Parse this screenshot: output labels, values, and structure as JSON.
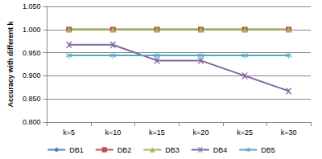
{
  "chart_data": {
    "type": "line",
    "y_label": "Accuracy with different k",
    "categories": [
      "k=5",
      "k=10",
      "k=15",
      "k=20",
      "k=25",
      "k=30"
    ],
    "series": [
      {
        "name": "DB1",
        "color": "#4f81bd",
        "marker": "diamond",
        "line_style": "solid",
        "values": [
          1.0,
          1.0,
          1.0,
          1.0,
          1.0,
          1.0
        ]
      },
      {
        "name": "DB2",
        "color": "#c0504d",
        "marker": "square",
        "line_style": "solid",
        "values": [
          1.0,
          1.0,
          1.0,
          1.0,
          1.0,
          1.0
        ]
      },
      {
        "name": "DB3",
        "color": "#9bbb59",
        "marker": "triangle",
        "line_style": "solid",
        "values": [
          1.0,
          1.0,
          1.0,
          1.0,
          1.0,
          1.0
        ]
      },
      {
        "name": "DB4",
        "color": "#8064a2",
        "marker": "x",
        "line_style": "solid",
        "values": [
          0.967,
          0.967,
          0.933,
          0.933,
          0.9,
          0.867
        ]
      },
      {
        "name": "DB5",
        "color": "#4bacc6",
        "marker": "star",
        "line_style": "solid",
        "values": [
          0.944,
          0.944,
          0.944,
          0.944,
          0.944,
          0.944
        ]
      }
    ],
    "ylim": [
      0.8,
      1.05
    ],
    "yticks": [
      {
        "value": 0.8,
        "label": "0.800"
      },
      {
        "value": 0.85,
        "label": "0.850"
      },
      {
        "value": 0.9,
        "label": "0.900"
      },
      {
        "value": 0.95,
        "label": "0.950"
      },
      {
        "value": 1.0,
        "label": "1.000"
      },
      {
        "value": 1.05,
        "label": "1.050"
      }
    ],
    "grid": true,
    "legend": "bottom"
  }
}
